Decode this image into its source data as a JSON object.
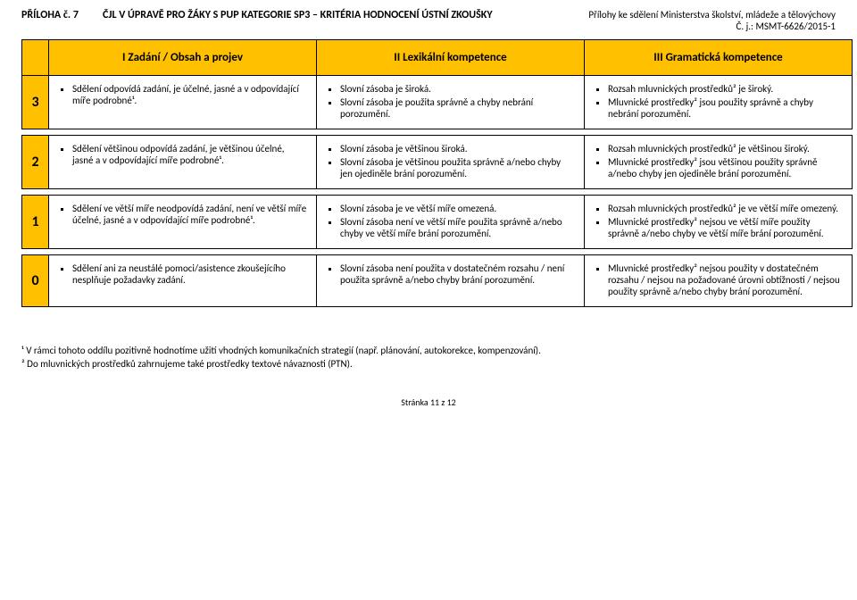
{
  "header": {
    "priloha": "PŘÍLOHA č. 7",
    "title": "ČJL V ÚPRAVĚ PRO ŽÁKY S PUP KATEGORIE SP3 – KRITÉRIA HODNOCENÍ ÚSTNÍ ZKOUŠKY",
    "right_line1": "Přílohy ke sdělení Ministerstva školství, mládeže a tělovýchovy",
    "right_line2": "Č. j.: MSMT-6626/2015-1"
  },
  "columns": {
    "c1": "I Zadání / Obsah a projev",
    "c2": "II Lexikální kompetence",
    "c3": "III Gramatická kompetence"
  },
  "rows": [
    {
      "num": "3",
      "c1": [
        "Sdělení odpovídá zadání, je účelné, jasné a v odpovídající míře podrobné¹."
      ],
      "c2": [
        "Slovní zásoba je široká.",
        "Slovní zásoba je použita správně a chyby nebrání porozumění."
      ],
      "c3": [
        "Rozsah mluvnických prostředků² je široký.",
        "Mluvnické prostředky² jsou použity správně a chyby nebrání porozumění."
      ]
    },
    {
      "num": "2",
      "c1": [
        "Sdělení většinou odpovídá zadání, je většinou účelné, jasné a v odpovídající míře podrobné¹."
      ],
      "c2": [
        "Slovní zásoba je většinou široká.",
        "Slovní zásoba je většinou použita správně a/nebo chyby jen ojediněle brání porozumění."
      ],
      "c3": [
        "Rozsah mluvnických prostředků² je většinou široký.",
        "Mluvnické prostředky² jsou většinou použity správně a/nebo chyby jen ojediněle brání porozumění."
      ]
    },
    {
      "num": "1",
      "c1": [
        "Sdělení ve větší míře neodpovídá zadání, není ve větší míře účelné, jasné a v odpovídající míře podrobné¹."
      ],
      "c2": [
        "Slovní zásoba je ve větší míře omezená.",
        "Slovní zásoba není ve větší míře použita správně a/nebo chyby ve větší míře brání porozumění."
      ],
      "c3": [
        "Rozsah mluvnických prostředků² je ve větší míře omezený.",
        "Mluvnické prostředky² nejsou ve větší míře použity správně a/nebo chyby ve větší míře brání porozumění."
      ]
    },
    {
      "num": "0",
      "c1": [
        "Sdělení ani za neustálé pomoci/asistence zkoušejícího nesplňuje požadavky zadání."
      ],
      "c2": [
        "Slovní zásoba není použita v dostatečném rozsahu / není použita správně a/nebo chyby brání porozumění."
      ],
      "c3": [
        "Mluvnické prostředky² nejsou použity v dostatečném rozsahu / nejsou na požadované úrovni obtížnosti / nejsou použity správně a/nebo chyby brání porozumění."
      ]
    }
  ],
  "footnotes": {
    "f1": "¹ V rámci tohoto oddílu pozitivně hodnotíme užití vhodných komunikačních strategií (např. plánování, autokorekce, kompenzování).",
    "f2": "² Do mluvnických prostředků zahrnujeme také prostředky textové návaznosti (PTN)."
  },
  "page": "Stránka 11 z 12",
  "colors": {
    "accent": "#ffc000"
  }
}
